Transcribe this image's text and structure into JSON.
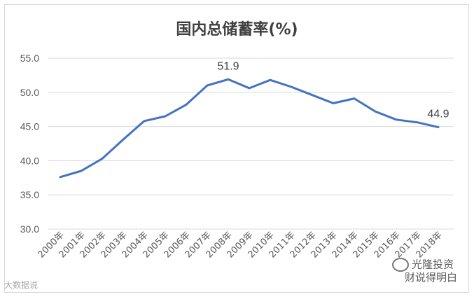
{
  "chart_data": {
    "type": "line",
    "title": "国内总储蓄率(%)",
    "xlabel": "",
    "ylabel": "",
    "categories": [
      "2000年",
      "2001年",
      "2002年",
      "2003年",
      "2004年",
      "2005年",
      "2006年",
      "2007年",
      "2008年",
      "2009年",
      "2010年",
      "2011年",
      "2012年",
      "2013年",
      "2014年",
      "2015年",
      "2016年",
      "2017年",
      "2018年"
    ],
    "values": [
      37.6,
      38.5,
      40.3,
      43.1,
      45.8,
      46.5,
      48.2,
      51.0,
      51.9,
      50.6,
      51.8,
      50.8,
      49.6,
      48.4,
      49.1,
      47.2,
      46.0,
      45.6,
      44.9
    ],
    "ylim": [
      30,
      55
    ],
    "yticks": [
      "30.0",
      "35.0",
      "40.0",
      "45.0",
      "50.0",
      "55.0"
    ],
    "grid": true,
    "color": "#4472c4",
    "data_labels": [
      {
        "index": 8,
        "text": "51.9"
      },
      {
        "index": 18,
        "text": "44.9"
      }
    ]
  },
  "watermarks": {
    "left": "大数据说",
    "right_line1": "光隆投资",
    "right_line2": "财说得明白"
  }
}
